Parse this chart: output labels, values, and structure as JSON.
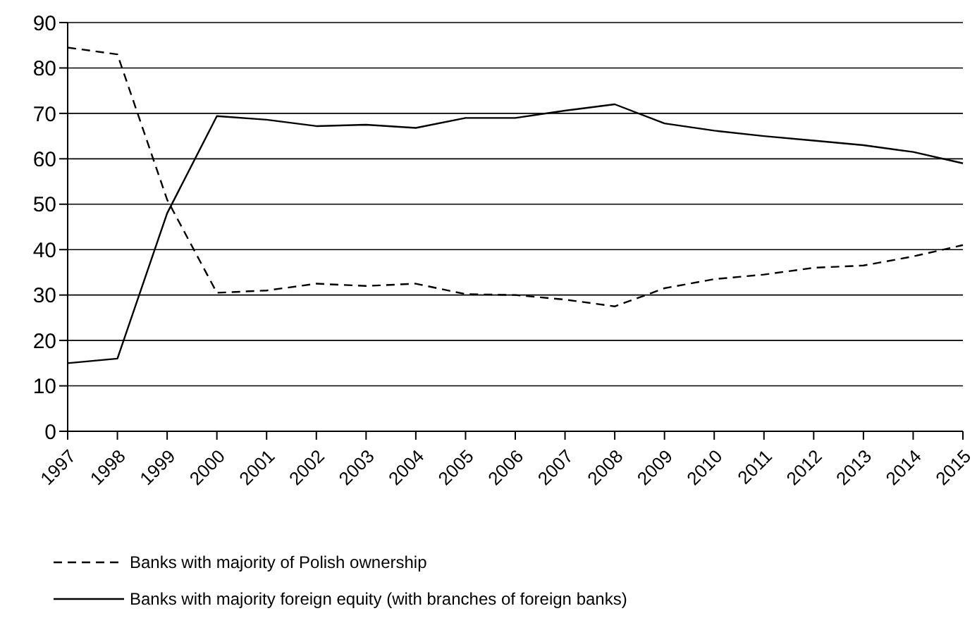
{
  "chart_data": {
    "type": "line",
    "categories": [
      "1997",
      "1998",
      "1999",
      "2000",
      "2001",
      "2002",
      "2003",
      "2004",
      "2005",
      "2006",
      "2007",
      "2008",
      "2009",
      "2010",
      "2011",
      "2012",
      "2013",
      "2014",
      "2015"
    ],
    "series": [
      {
        "name": "Banks with majority of Polish ownership",
        "color": "#000000",
        "line_style": "dashed",
        "values": [
          84.5,
          83,
          51,
          30.5,
          31,
          32.5,
          32,
          32.5,
          30.2,
          30,
          29,
          27.5,
          31.5,
          33.5,
          34.5,
          36,
          36.5,
          38.5,
          41
        ]
      },
      {
        "name": "Banks with majority foreign equity (with branches of foreign banks)",
        "color": "#000000",
        "line_style": "solid",
        "values": [
          15,
          16,
          48,
          69.4,
          68.6,
          67.2,
          67.5,
          66.8,
          69,
          69,
          70.6,
          72,
          67.8,
          66.2,
          65,
          64,
          63,
          61.5,
          59
        ]
      }
    ],
    "ylim": [
      0,
      90
    ],
    "yticks": [
      0,
      10,
      20,
      30,
      40,
      50,
      60,
      70,
      80,
      90
    ],
    "grid": "y",
    "legend": "bottom",
    "marker": "none"
  }
}
